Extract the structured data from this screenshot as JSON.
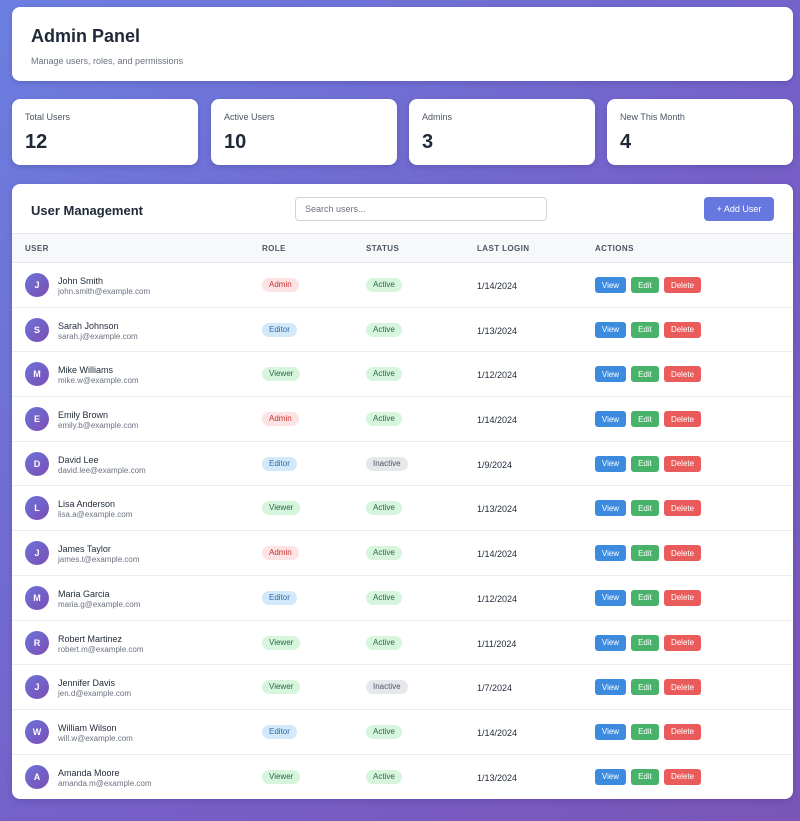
{
  "header": {
    "title": "Admin Panel",
    "subtitle": "Manage users, roles, and permissions"
  },
  "stats": [
    {
      "label": "Total Users",
      "value": "12"
    },
    {
      "label": "Active Users",
      "value": "10"
    },
    {
      "label": "Admins",
      "value": "3"
    },
    {
      "label": "New This Month",
      "value": "4"
    }
  ],
  "panel": {
    "title": "User Management",
    "search_placeholder": "Search users...",
    "add_button": "+ Add User"
  },
  "table": {
    "columns": [
      "USER",
      "ROLE",
      "STATUS",
      "LAST LOGIN",
      "ACTIONS"
    ],
    "action_labels": {
      "view": "View",
      "edit": "Edit",
      "delete": "Delete"
    },
    "rows": [
      {
        "initial": "J",
        "name": "John Smith",
        "email": "john.smith@example.com",
        "role": "Admin",
        "status": "Active",
        "last_login": "1/14/2024"
      },
      {
        "initial": "S",
        "name": "Sarah Johnson",
        "email": "sarah.j@example.com",
        "role": "Editor",
        "status": "Active",
        "last_login": "1/13/2024"
      },
      {
        "initial": "M",
        "name": "Mike Williams",
        "email": "mike.w@example.com",
        "role": "Viewer",
        "status": "Active",
        "last_login": "1/12/2024"
      },
      {
        "initial": "E",
        "name": "Emily Brown",
        "email": "emily.b@example.com",
        "role": "Admin",
        "status": "Active",
        "last_login": "1/14/2024"
      },
      {
        "initial": "D",
        "name": "David Lee",
        "email": "david.lee@example.com",
        "role": "Editor",
        "status": "Inactive",
        "last_login": "1/9/2024"
      },
      {
        "initial": "L",
        "name": "Lisa Anderson",
        "email": "lisa.a@example.com",
        "role": "Viewer",
        "status": "Active",
        "last_login": "1/13/2024"
      },
      {
        "initial": "J",
        "name": "James Taylor",
        "email": "james.t@example.com",
        "role": "Admin",
        "status": "Active",
        "last_login": "1/14/2024"
      },
      {
        "initial": "M",
        "name": "Maria Garcia",
        "email": "maria.g@example.com",
        "role": "Editor",
        "status": "Active",
        "last_login": "1/12/2024"
      },
      {
        "initial": "R",
        "name": "Robert Martinez",
        "email": "robert.m@example.com",
        "role": "Viewer",
        "status": "Active",
        "last_login": "1/11/2024"
      },
      {
        "initial": "J",
        "name": "Jennifer Davis",
        "email": "jen.d@example.com",
        "role": "Viewer",
        "status": "Inactive",
        "last_login": "1/7/2024"
      },
      {
        "initial": "W",
        "name": "William Wilson",
        "email": "will.w@example.com",
        "role": "Editor",
        "status": "Active",
        "last_login": "1/14/2024"
      },
      {
        "initial": "A",
        "name": "Amanda Moore",
        "email": "amanda.m@example.com",
        "role": "Viewer",
        "status": "Active",
        "last_login": "1/13/2024"
      }
    ]
  },
  "colors": {
    "accent": "#6677e0",
    "view": "#3d8bdf",
    "edit": "#48b26a",
    "delete": "#ea5c5c",
    "background_start": "#6b7fe0",
    "background_end": "#7a55b8"
  }
}
